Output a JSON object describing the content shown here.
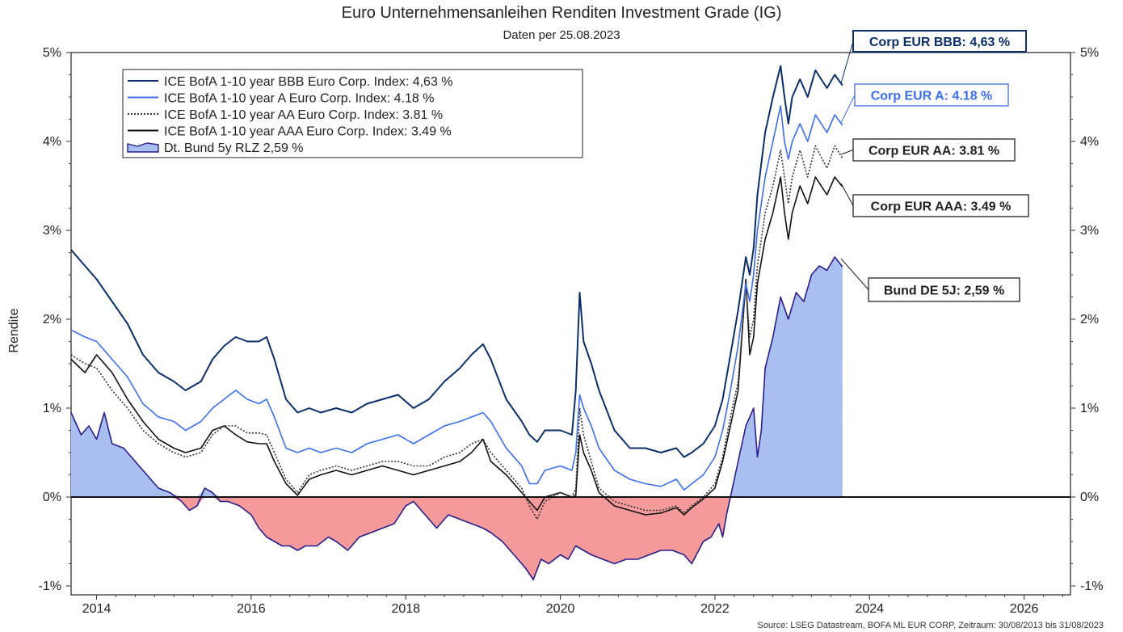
{
  "title": "Euro Unternehmensanleihen Renditen Investment Grade (IG)",
  "subtitle": "Daten per 25.08.2023",
  "source": "Source: LSEG Datastream, BOFA ML EUR CORP, Zeitraum: 30/08/2013 bis 31/08/2023",
  "colors": {
    "bbb": "#0b2f6a",
    "a": "#3d6ef0",
    "aa": "#333333",
    "aaa": "#111111",
    "bund_line": "#2a1d8c",
    "bund_pos_fill": "#a9bff2",
    "bund_neg_fill": "#f59a9a"
  },
  "chart_data": {
    "type": "line",
    "title": "Euro Unternehmensanleihen Renditen Investment Grade (IG)",
    "subtitle": "Daten per 25.08.2023",
    "xlabel": "",
    "ylabel": "Rendite",
    "xlim": [
      2013.67,
      2026.6
    ],
    "ylim": [
      -1.1,
      5.0
    ],
    "x_ticks": [
      2014,
      2016,
      2018,
      2020,
      2022,
      2024,
      2026
    ],
    "x_tick_labels": [
      "2014",
      "2016",
      "2018",
      "2020",
      "2022",
      "2024",
      "2026"
    ],
    "y_ticks": [
      -1,
      0,
      1,
      2,
      3,
      4,
      5
    ],
    "y_tick_labels": [
      "-1%",
      "0%",
      "1%",
      "2%",
      "3%",
      "4%",
      "5%"
    ],
    "legend": [
      "ICE BofA 1-10 year BBB Euro Corp. Index: 4,63 %",
      "ICE BofA 1-10 year A Euro Corp. Index: 4.18 %",
      "ICE BofA 1-10 year AA Euro Corp. Index: 3.81 %",
      "ICE BofA 1-10 year AAA Euro Corp. Index: 3.49 %",
      "Dt. Bund 5y RLZ 2,59 %"
    ],
    "legend_position": "top-left",
    "callouts": [
      {
        "series": "bbb",
        "text": "Corp EUR BBB: 4,63 %"
      },
      {
        "series": "a",
        "text": "Corp EUR A: 4.18 %"
      },
      {
        "series": "aa",
        "text": "Corp EUR AA: 3.81 %"
      },
      {
        "series": "aaa",
        "text": "Corp EUR AAA: 3.49 %"
      },
      {
        "series": "bund",
        "text": "Bund DE 5J: 2,59 %"
      }
    ],
    "series": [
      {
        "key": "bbb",
        "name": "ICE BofA 1-10 year BBB Euro Corp. Index",
        "style": "solid",
        "x": [
          2013.67,
          2013.85,
          2014.0,
          2014.2,
          2014.4,
          2014.6,
          2014.8,
          2015.0,
          2015.15,
          2015.35,
          2015.5,
          2015.65,
          2015.8,
          2015.95,
          2016.1,
          2016.2,
          2016.3,
          2016.45,
          2016.6,
          2016.75,
          2016.9,
          2017.1,
          2017.3,
          2017.5,
          2017.7,
          2017.9,
          2018.1,
          2018.3,
          2018.5,
          2018.7,
          2018.85,
          2019.0,
          2019.1,
          2019.3,
          2019.5,
          2019.6,
          2019.7,
          2019.8,
          2020.0,
          2020.15,
          2020.2,
          2020.25,
          2020.3,
          2020.4,
          2020.5,
          2020.7,
          2020.9,
          2021.1,
          2021.3,
          2021.5,
          2021.6,
          2021.7,
          2021.85,
          2022.0,
          2022.1,
          2022.2,
          2022.3,
          2022.4,
          2022.45,
          2022.5,
          2022.55,
          2022.65,
          2022.75,
          2022.85,
          2022.9,
          2022.95,
          2023.0,
          2023.1,
          2023.2,
          2023.3,
          2023.45,
          2023.55,
          2023.65
        ],
        "y": [
          2.78,
          2.6,
          2.45,
          2.2,
          1.95,
          1.6,
          1.4,
          1.3,
          1.2,
          1.3,
          1.55,
          1.7,
          1.8,
          1.75,
          1.75,
          1.8,
          1.55,
          1.1,
          0.95,
          1.0,
          0.95,
          1.0,
          0.95,
          1.05,
          1.1,
          1.15,
          1.0,
          1.1,
          1.3,
          1.45,
          1.6,
          1.72,
          1.55,
          1.1,
          0.85,
          0.7,
          0.62,
          0.75,
          0.75,
          0.7,
          1.2,
          2.3,
          1.75,
          1.5,
          1.2,
          0.75,
          0.55,
          0.55,
          0.5,
          0.55,
          0.45,
          0.5,
          0.6,
          0.8,
          1.1,
          1.6,
          2.1,
          2.7,
          2.5,
          2.8,
          3.4,
          4.1,
          4.5,
          4.85,
          4.5,
          4.2,
          4.5,
          4.7,
          4.5,
          4.8,
          4.6,
          4.75,
          4.63
        ]
      },
      {
        "key": "a",
        "name": "ICE BofA 1-10 year A Euro Corp. Index",
        "style": "solid",
        "x": [
          2013.67,
          2013.85,
          2014.0,
          2014.2,
          2014.4,
          2014.6,
          2014.8,
          2015.0,
          2015.15,
          2015.35,
          2015.5,
          2015.65,
          2015.8,
          2015.95,
          2016.1,
          2016.2,
          2016.3,
          2016.45,
          2016.6,
          2016.75,
          2016.9,
          2017.1,
          2017.3,
          2017.5,
          2017.7,
          2017.9,
          2018.1,
          2018.3,
          2018.5,
          2018.7,
          2018.85,
          2019.0,
          2019.1,
          2019.3,
          2019.5,
          2019.6,
          2019.7,
          2019.8,
          2020.0,
          2020.15,
          2020.2,
          2020.25,
          2020.3,
          2020.4,
          2020.5,
          2020.7,
          2020.9,
          2021.1,
          2021.3,
          2021.5,
          2021.6,
          2021.7,
          2021.85,
          2022.0,
          2022.1,
          2022.2,
          2022.3,
          2022.4,
          2022.45,
          2022.5,
          2022.55,
          2022.65,
          2022.75,
          2022.85,
          2022.9,
          2022.95,
          2023.0,
          2023.1,
          2023.2,
          2023.3,
          2023.45,
          2023.55,
          2023.65
        ],
        "y": [
          1.88,
          1.8,
          1.75,
          1.55,
          1.35,
          1.05,
          0.9,
          0.85,
          0.75,
          0.85,
          1.0,
          1.1,
          1.2,
          1.1,
          1.05,
          1.1,
          0.9,
          0.55,
          0.5,
          0.55,
          0.5,
          0.55,
          0.5,
          0.6,
          0.65,
          0.7,
          0.6,
          0.7,
          0.8,
          0.85,
          0.9,
          0.95,
          0.85,
          0.55,
          0.35,
          0.15,
          0.15,
          0.3,
          0.35,
          0.3,
          0.5,
          1.15,
          1.0,
          0.8,
          0.55,
          0.3,
          0.2,
          0.15,
          0.12,
          0.2,
          0.08,
          0.15,
          0.25,
          0.45,
          0.75,
          1.2,
          1.7,
          2.4,
          2.2,
          2.5,
          3.0,
          3.6,
          4.0,
          4.4,
          4.0,
          3.8,
          4.0,
          4.2,
          4.0,
          4.3,
          4.1,
          4.3,
          4.18
        ]
      },
      {
        "key": "aa",
        "name": "ICE BofA 1-10 year AA Euro Corp. Index",
        "style": "dotted",
        "x": [
          2013.67,
          2013.85,
          2014.0,
          2014.2,
          2014.4,
          2014.6,
          2014.8,
          2015.0,
          2015.15,
          2015.35,
          2015.5,
          2015.65,
          2015.8,
          2015.95,
          2016.1,
          2016.2,
          2016.3,
          2016.45,
          2016.6,
          2016.75,
          2016.9,
          2017.1,
          2017.3,
          2017.5,
          2017.7,
          2017.9,
          2018.1,
          2018.3,
          2018.5,
          2018.7,
          2018.85,
          2019.0,
          2019.1,
          2019.3,
          2019.5,
          2019.6,
          2019.7,
          2019.8,
          2020.0,
          2020.15,
          2020.2,
          2020.25,
          2020.3,
          2020.4,
          2020.5,
          2020.7,
          2020.9,
          2021.1,
          2021.3,
          2021.5,
          2021.6,
          2021.7,
          2021.85,
          2022.0,
          2022.1,
          2022.2,
          2022.3,
          2022.4,
          2022.45,
          2022.5,
          2022.55,
          2022.65,
          2022.75,
          2022.85,
          2022.9,
          2022.95,
          2023.0,
          2023.1,
          2023.2,
          2023.3,
          2023.45,
          2023.55,
          2023.65
        ],
        "y": [
          1.6,
          1.5,
          1.45,
          1.2,
          1.0,
          0.75,
          0.6,
          0.5,
          0.45,
          0.5,
          0.7,
          0.8,
          0.8,
          0.72,
          0.72,
          0.7,
          0.5,
          0.2,
          0.05,
          0.25,
          0.3,
          0.35,
          0.3,
          0.35,
          0.4,
          0.4,
          0.35,
          0.35,
          0.45,
          0.5,
          0.6,
          0.65,
          0.5,
          0.3,
          0.1,
          -0.1,
          -0.25,
          -0.05,
          0.05,
          0.0,
          0.1,
          1.0,
          0.7,
          0.4,
          0.1,
          -0.05,
          -0.1,
          -0.15,
          -0.15,
          -0.1,
          -0.18,
          -0.1,
          0.0,
          0.15,
          0.45,
          0.9,
          1.3,
          2.4,
          1.8,
          2.0,
          2.6,
          3.2,
          3.5,
          3.9,
          3.6,
          3.3,
          3.6,
          3.9,
          3.6,
          3.95,
          3.7,
          3.95,
          3.81
        ]
      },
      {
        "key": "aaa",
        "name": "ICE BofA 1-10 year AAA Euro Corp. Index",
        "style": "solid",
        "x": [
          2013.67,
          2013.85,
          2014.0,
          2014.2,
          2014.4,
          2014.6,
          2014.8,
          2015.0,
          2015.15,
          2015.35,
          2015.5,
          2015.65,
          2015.8,
          2015.95,
          2016.1,
          2016.2,
          2016.3,
          2016.45,
          2016.6,
          2016.75,
          2016.9,
          2017.1,
          2017.3,
          2017.5,
          2017.7,
          2017.9,
          2018.1,
          2018.3,
          2018.5,
          2018.7,
          2018.85,
          2019.0,
          2019.1,
          2019.3,
          2019.5,
          2019.6,
          2019.7,
          2019.8,
          2020.0,
          2020.15,
          2020.2,
          2020.25,
          2020.3,
          2020.4,
          2020.5,
          2020.7,
          2020.9,
          2021.1,
          2021.3,
          2021.5,
          2021.6,
          2021.7,
          2021.85,
          2022.0,
          2022.1,
          2022.2,
          2022.3,
          2022.4,
          2022.45,
          2022.5,
          2022.55,
          2022.65,
          2022.75,
          2022.85,
          2022.9,
          2022.95,
          2023.0,
          2023.1,
          2023.2,
          2023.3,
          2023.45,
          2023.55,
          2023.65
        ],
        "y": [
          1.55,
          1.4,
          1.6,
          1.4,
          1.1,
          0.85,
          0.65,
          0.55,
          0.5,
          0.55,
          0.75,
          0.8,
          0.7,
          0.62,
          0.6,
          0.6,
          0.4,
          0.15,
          0.02,
          0.2,
          0.25,
          0.3,
          0.25,
          0.3,
          0.35,
          0.3,
          0.25,
          0.3,
          0.35,
          0.4,
          0.5,
          0.65,
          0.4,
          0.25,
          0.05,
          -0.05,
          -0.15,
          0.0,
          0.05,
          0.0,
          0.02,
          0.7,
          0.5,
          0.3,
          0.05,
          -0.1,
          -0.15,
          -0.2,
          -0.18,
          -0.12,
          -0.2,
          -0.12,
          -0.02,
          0.1,
          0.4,
          0.8,
          1.2,
          2.45,
          1.6,
          1.8,
          2.4,
          2.9,
          3.2,
          3.6,
          3.2,
          2.9,
          3.2,
          3.5,
          3.3,
          3.6,
          3.4,
          3.6,
          3.49
        ]
      },
      {
        "key": "bund",
        "name": "Dt. Bund 5y RLZ",
        "style": "area",
        "x": [
          2013.67,
          2013.8,
          2013.9,
          2014.0,
          2014.1,
          2014.2,
          2014.35,
          2014.5,
          2014.65,
          2014.8,
          2014.95,
          2015.1,
          2015.2,
          2015.3,
          2015.4,
          2015.5,
          2015.6,
          2015.7,
          2015.85,
          2016.0,
          2016.1,
          2016.2,
          2016.3,
          2016.4,
          2016.5,
          2016.6,
          2016.7,
          2016.85,
          2017.0,
          2017.1,
          2017.25,
          2017.4,
          2017.55,
          2017.7,
          2017.85,
          2018.0,
          2018.1,
          2018.25,
          2018.4,
          2018.55,
          2018.7,
          2018.85,
          2019.0,
          2019.1,
          2019.25,
          2019.4,
          2019.55,
          2019.65,
          2019.75,
          2019.85,
          2020.0,
          2020.1,
          2020.2,
          2020.3,
          2020.4,
          2020.55,
          2020.7,
          2020.85,
          2021.0,
          2021.15,
          2021.3,
          2021.45,
          2021.6,
          2021.7,
          2021.85,
          2021.95,
          2022.05,
          2022.1,
          2022.15,
          2022.2,
          2022.3,
          2022.4,
          2022.5,
          2022.55,
          2022.6,
          2022.65,
          2022.75,
          2022.85,
          2022.95,
          2023.05,
          2023.15,
          2023.25,
          2023.35,
          2023.45,
          2023.55,
          2023.65
        ],
        "y": [
          0.95,
          0.7,
          0.8,
          0.65,
          0.95,
          0.6,
          0.55,
          0.4,
          0.25,
          0.1,
          0.05,
          -0.05,
          -0.15,
          -0.1,
          0.1,
          0.05,
          -0.05,
          -0.05,
          -0.1,
          -0.2,
          -0.35,
          -0.45,
          -0.5,
          -0.55,
          -0.55,
          -0.6,
          -0.55,
          -0.55,
          -0.45,
          -0.5,
          -0.6,
          -0.45,
          -0.4,
          -0.35,
          -0.3,
          -0.1,
          -0.05,
          -0.2,
          -0.35,
          -0.2,
          -0.25,
          -0.3,
          -0.35,
          -0.4,
          -0.5,
          -0.65,
          -0.8,
          -0.93,
          -0.7,
          -0.75,
          -0.65,
          -0.7,
          -0.55,
          -0.6,
          -0.65,
          -0.7,
          -0.75,
          -0.7,
          -0.7,
          -0.65,
          -0.6,
          -0.6,
          -0.65,
          -0.75,
          -0.5,
          -0.45,
          -0.3,
          -0.45,
          -0.2,
          0.0,
          0.4,
          0.8,
          1.0,
          0.45,
          0.75,
          1.45,
          1.8,
          2.25,
          2.0,
          2.3,
          2.2,
          2.5,
          2.6,
          2.55,
          2.7,
          2.59
        ]
      }
    ]
  }
}
